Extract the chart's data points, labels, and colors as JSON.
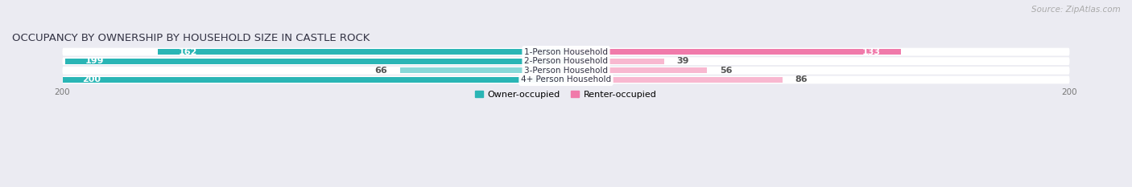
{
  "title": "OCCUPANCY BY OWNERSHIP BY HOUSEHOLD SIZE IN CASTLE ROCK",
  "source": "Source: ZipAtlas.com",
  "categories": [
    "1-Person Household",
    "2-Person Household",
    "3-Person Household",
    "4+ Person Household"
  ],
  "owner_values": [
    162,
    199,
    66,
    200
  ],
  "renter_values": [
    133,
    39,
    56,
    86
  ],
  "max_value": 200,
  "owner_color_dark": "#2ab5b5",
  "owner_color_light": "#88d8d8",
  "renter_color_dark": "#f07aaa",
  "renter_color_light": "#f8b8d0",
  "bg_color": "#ebebf2",
  "bar_row_bg": "#f5f5f8",
  "bar_row_bg2": "#e8e8f0",
  "legend_owner": "Owner-occupied",
  "legend_renter": "Renter-occupied",
  "title_fontsize": 9.5,
  "source_fontsize": 7.5,
  "label_fontsize": 8,
  "cat_fontsize": 7.5,
  "axis_tick_fontsize": 7.5
}
